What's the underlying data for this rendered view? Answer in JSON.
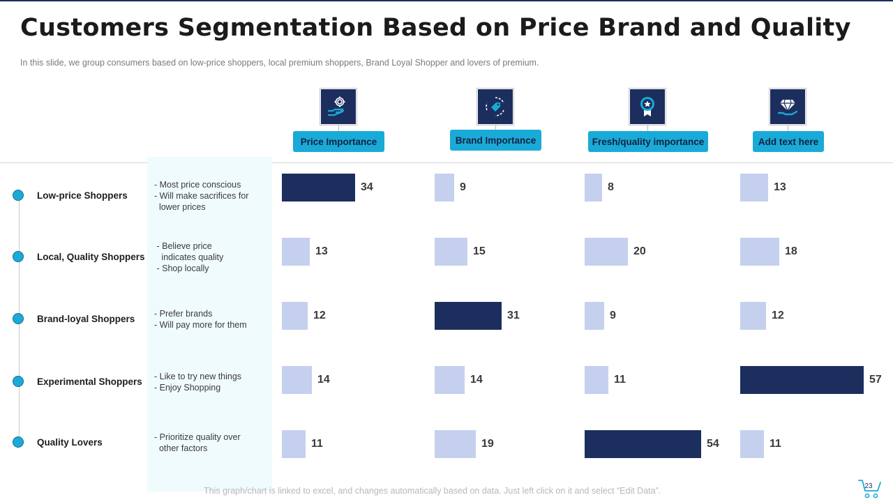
{
  "title": "Customers Segmentation Based on Price Brand and Quality",
  "subtitle": "In this slide, we group consumers based on low-price shoppers, local premium shoppers, Brand Loyal Shopper and lovers of premium.",
  "footnote": "This graph/chart is linked to excel, and changes automatically based on data. Just left click on it and select “Edit Data”.",
  "page_number": "23",
  "colors": {
    "navy": "#1c2e5e",
    "light_bar": "#c5d0ef",
    "accent": "#1aaad8",
    "panel": "#f0fbfd"
  },
  "columns": [
    {
      "label": "Price Importance",
      "icon": "hand-dollar-gear-icon"
    },
    {
      "label": "Brand Importance",
      "icon": "price-tag-cycle-icon"
    },
    {
      "label": "Fresh/quality importance",
      "icon": "award-badge-icon"
    },
    {
      "label": "Add text here",
      "icon": "hand-diamond-icon"
    }
  ],
  "segments": [
    {
      "name": "Low-price Shoppers",
      "description": "- Most price conscious\n- Will make sacrifices for\n  lower prices"
    },
    {
      "name": "Local, Quality Shoppers",
      "description": " - Believe price\n   indicates quality\n - Shop locally"
    },
    {
      "name": "Brand-loyal Shoppers",
      "description": "- Prefer brands\n- Will pay more for them"
    },
    {
      "name": "Experimental Shoppers",
      "description": "- Like to try new things\n- Enjoy Shopping"
    },
    {
      "name": "Quality Lovers",
      "description": "- Prioritize quality over\n  other factors"
    }
  ],
  "chart_data": {
    "type": "bar",
    "orientation": "horizontal",
    "title": "Customers Segmentation Based on Price Brand and Quality",
    "categories": [
      "Low-price Shoppers",
      "Local, Quality Shoppers",
      "Brand-loyal Shoppers",
      "Experimental Shoppers",
      "Quality Lovers"
    ],
    "series": [
      {
        "name": "Price Importance",
        "values": [
          34,
          13,
          12,
          14,
          11
        ],
        "highlight": [
          true,
          false,
          false,
          false,
          false
        ]
      },
      {
        "name": "Brand Importance",
        "values": [
          9,
          15,
          31,
          14,
          19
        ],
        "highlight": [
          false,
          false,
          true,
          false,
          false
        ]
      },
      {
        "name": "Fresh/quality importance",
        "values": [
          8,
          20,
          9,
          11,
          54
        ],
        "highlight": [
          false,
          false,
          false,
          false,
          true
        ]
      },
      {
        "name": "Add text here",
        "values": [
          13,
          18,
          12,
          57,
          11
        ],
        "highlight": [
          false,
          false,
          false,
          true,
          false
        ]
      }
    ],
    "xlabel": "",
    "ylabel": "",
    "grid": false,
    "data_labels": true
  }
}
